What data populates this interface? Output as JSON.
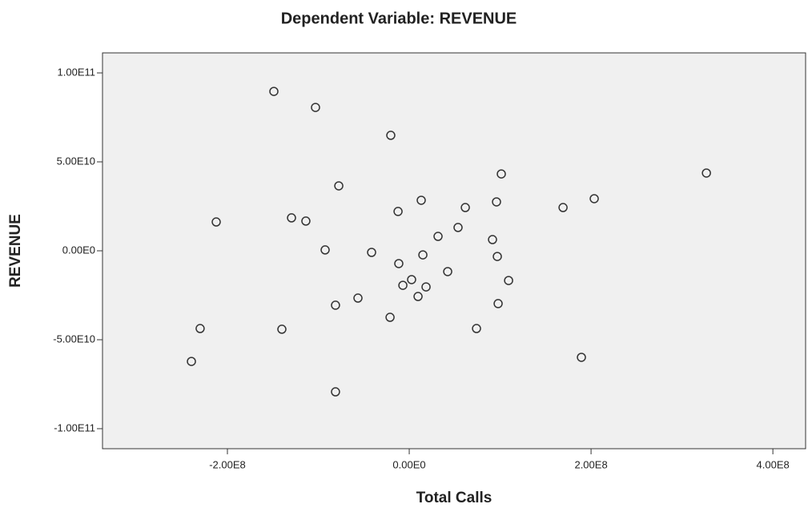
{
  "chart_data": {
    "type": "scatter",
    "title": "Dependent Variable: REVENUE",
    "x_label": "Total Calls",
    "y_label": "REVENUE",
    "x": [
      -148900000.0,
      -103100000.0,
      -20300000.0,
      101300000.0,
      326900000.0,
      -77500000.0,
      13200000.0,
      203500000.0,
      96000000.0,
      -12300000.0,
      61700000.0,
      169200000.0,
      -212300000.0,
      -129500000.0,
      -113700000.0,
      53700000.0,
      31700000.0,
      91600000.0,
      -92500000.0,
      -41400000.0,
      15000000.0,
      96900000.0,
      -11500000.0,
      42300000.0,
      109300000.0,
      2600000.0,
      -7000000.0,
      18500000.0,
      9700000.0,
      -56400000.0,
      -81100000.0,
      97800000.0,
      -21100000.0,
      -230000000.0,
      -140100000.0,
      74000000.0,
      -239600000.0,
      189400000.0,
      -81100000.0
    ],
    "values": [
      89600000000.0,
      80600000000.0,
      64900000000.0,
      43200000000.0,
      43700000000.0,
      36500000000.0,
      28400000000.0,
      29300000000.0,
      27500000000.0,
      22100000000.0,
      24300000000.0,
      24300000000.0,
      16200000000.0,
      18500000000.0,
      16700000000.0,
      13100000000.0,
      8100000000.0,
      6300000000.0,
      500000000.0,
      -900000000.0,
      -2300000000.0,
      -3200000000.0,
      -7200000000.0,
      -11700000000.0,
      -16700000000.0,
      -16200000000.0,
      -19400000000.0,
      -20300000000.0,
      -25700000000.0,
      -26600000000.0,
      -30600000000.0,
      -29700000000.0,
      -37400000000.0,
      -43700000000.0,
      -44100000000.0,
      -43700000000.0,
      -62200000000.0,
      -59900000000.0,
      -79300000000.0
    ],
    "color": "#333333",
    "xlim": [
      -337400000.0,
      436000000.0
    ],
    "ylim": [
      -111260000000.0,
      111260000000.0
    ],
    "xticks": [
      {
        "value": -200000000,
        "label": "-2.00E8"
      },
      {
        "value": 0,
        "label": "0.00E0"
      },
      {
        "value": 200000000,
        "label": "2.00E8"
      },
      {
        "value": 400000000,
        "label": "4.00E8"
      }
    ],
    "yticks": [
      {
        "value": 100000000000,
        "label": "1.00E11"
      },
      {
        "value": 50000000000,
        "label": "5.00E10"
      },
      {
        "value": 0,
        "label": "0.00E0"
      },
      {
        "value": -50000000000,
        "label": "-5.00E10"
      },
      {
        "value": -100000000000,
        "label": "-1.00E11"
      }
    ],
    "grid": false
  }
}
